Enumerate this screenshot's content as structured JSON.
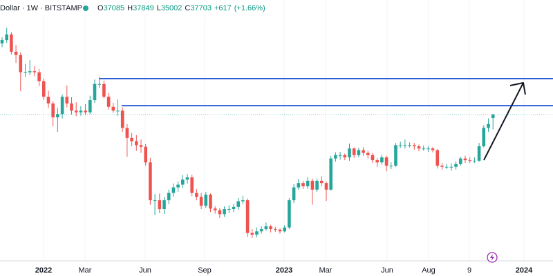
{
  "header": {
    "symbol": "Dollar · 1W · BITSTAMP",
    "ohlc": [
      {
        "label": "O",
        "value": 37085
      },
      {
        "label": "H",
        "value": 37849
      },
      {
        "label": "L",
        "value": 35002
      },
      {
        "label": "C",
        "value": 37703
      }
    ],
    "change": "+617",
    "change_pct": "(+1.66%)"
  },
  "chart_data": {
    "type": "candlestick",
    "up_color": "#26a69a",
    "down_color": "#ef5350",
    "ylim": [
      11400,
      58300
    ],
    "xlabels": [
      "2022",
      "Mar",
      "Jun",
      "Sep",
      "2023",
      "Mar",
      "Jun",
      "Aug",
      "9",
      "2024"
    ],
    "levels": [
      {
        "value": 44150,
        "color": "#2f5fd6"
      },
      {
        "value": 39300,
        "color": "#2f5fd6"
      }
    ],
    "open": [
      50500,
      51100,
      52100,
      49000,
      48400,
      45300,
      45300,
      45500,
      45300,
      43700,
      40900,
      39700,
      37200,
      37800,
      40900,
      39700,
      38400,
      38100,
      38400,
      38100,
      40300,
      43200,
      43200,
      40900,
      39100,
      38400,
      38400,
      35300,
      33500,
      32900,
      32200,
      31900,
      29100,
      22300,
      22300,
      20700,
      22300,
      23600,
      24600,
      25100,
      26000,
      26400,
      23600,
      22900,
      21300,
      23300,
      20800,
      20500,
      19800,
      20700,
      20700,
      21100,
      22100,
      22300,
      16400,
      16100,
      16700,
      17100,
      17600,
      17100,
      17000,
      16700,
      17400,
      22300,
      24600,
      25400,
      24800,
      25800,
      24200,
      25800,
      25400,
      24200,
      29800,
      30400,
      30400,
      30000,
      31600,
      30400,
      31300,
      30800,
      30400,
      29500,
      29100,
      30000,
      28500,
      28500,
      32200,
      32200,
      32200,
      32200,
      32000,
      31600,
      31600,
      31600,
      31300,
      28500,
      28300,
      28300,
      28300,
      28800,
      29800,
      29500,
      29400,
      29400,
      32000,
      35300,
      37085
    ],
    "high": [
      51600,
      53300,
      52500,
      50200,
      48900,
      46800,
      47500,
      46400,
      45900,
      44200,
      42000,
      40100,
      38900,
      41300,
      42900,
      40800,
      39900,
      39200,
      39600,
      41100,
      44000,
      44500,
      43800,
      41600,
      39800,
      40400,
      39000,
      36000,
      34400,
      34000,
      33200,
      32400,
      29900,
      23400,
      23500,
      22900,
      24200,
      25300,
      25700,
      26800,
      27000,
      26900,
      24300,
      23600,
      23800,
      23500,
      21200,
      20900,
      21200,
      21400,
      21600,
      22700,
      23100,
      22600,
      17100,
      17400,
      17600,
      18300,
      17900,
      17500,
      17200,
      17800,
      22700,
      25200,
      26100,
      25800,
      26400,
      26200,
      26200,
      26600,
      25600,
      30300,
      30900,
      31000,
      30700,
      32500,
      31800,
      31700,
      31800,
      31200,
      30800,
      29900,
      30500,
      30300,
      29100,
      32600,
      32800,
      33200,
      32700,
      32600,
      32300,
      32100,
      32000,
      31900,
      31500,
      29000,
      28800,
      28900,
      29300,
      30100,
      30300,
      30000,
      30000,
      32600,
      35800,
      37000,
      37849
    ],
    "low": [
      49800,
      50600,
      48500,
      47000,
      41900,
      44500,
      44800,
      44600,
      42800,
      40300,
      38900,
      35600,
      34600,
      37000,
      39000,
      37700,
      37400,
      37500,
      37600,
      37800,
      39800,
      42500,
      40600,
      38600,
      38000,
      37500,
      34600,
      30100,
      32000,
      31200,
      30800,
      28500,
      21500,
      19600,
      20000,
      19800,
      21600,
      22900,
      23800,
      24500,
      25300,
      23000,
      22300,
      20700,
      20900,
      20200,
      19900,
      19100,
      19300,
      20000,
      20200,
      20600,
      21600,
      15700,
      15500,
      15600,
      16300,
      16800,
      16500,
      16600,
      16300,
      16500,
      17100,
      21800,
      24200,
      24300,
      24300,
      21500,
      23800,
      24800,
      22200,
      24000,
      29200,
      29600,
      29500,
      29400,
      29900,
      30000,
      30300,
      29800,
      29000,
      28300,
      28700,
      27500,
      27900,
      28300,
      31700,
      31600,
      31800,
      31400,
      31100,
      31200,
      31000,
      30900,
      28000,
      27800,
      27900,
      27600,
      27800,
      28500,
      29000,
      29000,
      29000,
      29200,
      31800,
      34600,
      35002
    ],
    "close": [
      51100,
      52100,
      49000,
      48400,
      45300,
      45300,
      45500,
      45300,
      43700,
      40900,
      39700,
      37200,
      37800,
      40900,
      39700,
      38400,
      38100,
      38400,
      38100,
      40300,
      43200,
      43200,
      40900,
      39100,
      38400,
      38400,
      35300,
      33500,
      32900,
      32200,
      31900,
      29100,
      22300,
      22300,
      20700,
      22300,
      23600,
      24600,
      25100,
      26000,
      26400,
      23600,
      22900,
      21300,
      23300,
      20800,
      20500,
      19800,
      20700,
      20700,
      21100,
      22100,
      22300,
      16400,
      16100,
      16700,
      17100,
      17600,
      17100,
      17000,
      16700,
      17400,
      22300,
      24600,
      25400,
      24800,
      25800,
      24200,
      25800,
      25400,
      24200,
      29800,
      30400,
      30400,
      30000,
      31600,
      30400,
      31300,
      30800,
      30400,
      29500,
      29100,
      30000,
      28500,
      28500,
      32200,
      32200,
      32200,
      32200,
      32000,
      31600,
      31600,
      31600,
      31300,
      28500,
      28300,
      28300,
      28300,
      28800,
      29800,
      29500,
      29400,
      29400,
      32000,
      35300,
      36000,
      37703
    ]
  }
}
